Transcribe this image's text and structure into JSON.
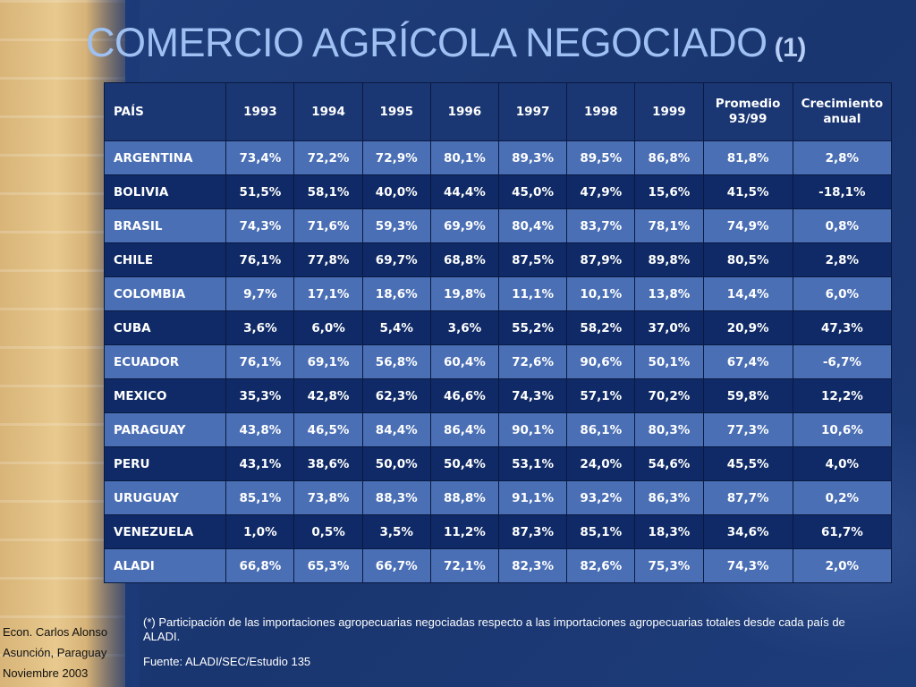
{
  "slide": {
    "title": "COMERCIO AGRÍCOLA NEGOCIADO",
    "title_note": "(1)",
    "colors": {
      "background": "#1b3a78",
      "title": "#9ec0f2",
      "row_light": "#4a6fb5",
      "row_dark": "#0f2a66",
      "stripe": "#e8c98e"
    }
  },
  "table": {
    "headers": [
      "PAÍS",
      "1993",
      "1994",
      "1995",
      "1996",
      "1997",
      "1998",
      "1999",
      "Promedio 93/99",
      "Crecimiento anual"
    ],
    "rows": [
      [
        "ARGENTINA",
        "73,4%",
        "72,2%",
        "72,9%",
        "80,1%",
        "89,3%",
        "89,5%",
        "86,8%",
        "81,8%",
        "2,8%"
      ],
      [
        "BOLIVIA",
        "51,5%",
        "58,1%",
        "40,0%",
        "44,4%",
        "45,0%",
        "47,9%",
        "15,6%",
        "41,5%",
        "-18,1%"
      ],
      [
        "BRASIL",
        "74,3%",
        "71,6%",
        "59,3%",
        "69,9%",
        "80,4%",
        "83,7%",
        "78,1%",
        "74,9%",
        "0,8%"
      ],
      [
        "CHILE",
        "76,1%",
        "77,8%",
        "69,7%",
        "68,8%",
        "87,5%",
        "87,9%",
        "89,8%",
        "80,5%",
        "2,8%"
      ],
      [
        "COLOMBIA",
        "9,7%",
        "17,1%",
        "18,6%",
        "19,8%",
        "11,1%",
        "10,1%",
        "13,8%",
        "14,4%",
        "6,0%"
      ],
      [
        "CUBA",
        "3,6%",
        "6,0%",
        "5,4%",
        "3,6%",
        "55,2%",
        "58,2%",
        "37,0%",
        "20,9%",
        "47,3%"
      ],
      [
        "ECUADOR",
        "76,1%",
        "69,1%",
        "56,8%",
        "60,4%",
        "72,6%",
        "90,6%",
        "50,1%",
        "67,4%",
        "-6,7%"
      ],
      [
        "MEXICO",
        "35,3%",
        "42,8%",
        "62,3%",
        "46,6%",
        "74,3%",
        "57,1%",
        "70,2%",
        "59,8%",
        "12,2%"
      ],
      [
        "PARAGUAY",
        "43,8%",
        "46,5%",
        "84,4%",
        "86,4%",
        "90,1%",
        "86,1%",
        "80,3%",
        "77,3%",
        "10,6%"
      ],
      [
        "PERU",
        "43,1%",
        "38,6%",
        "50,0%",
        "50,4%",
        "53,1%",
        "24,0%",
        "54,6%",
        "45,5%",
        "4,0%"
      ],
      [
        "URUGUAY",
        "85,1%",
        "73,8%",
        "88,3%",
        "88,8%",
        "91,1%",
        "93,2%",
        "86,3%",
        "87,7%",
        "0,2%"
      ],
      [
        "VENEZUELA",
        "1,0%",
        "0,5%",
        "3,5%",
        "11,2%",
        "87,3%",
        "85,1%",
        "18,3%",
        "34,6%",
        "61,7%"
      ],
      [
        "ALADI",
        "66,8%",
        "65,3%",
        "66,7%",
        "72,1%",
        "82,3%",
        "82,6%",
        "75,3%",
        "74,3%",
        "2,0%"
      ]
    ]
  },
  "footer": {
    "author": "Econ. Carlos Alonso",
    "place": "Asunción, Paraguay",
    "date": "Noviembre 2003",
    "footnote": "(*) Participación de las importaciones agropecuarias negociadas respecto a las importaciones agropecuarias totales desde cada país de ALADI.",
    "source": "Fuente: ALADI/SEC/Estudio 135"
  }
}
